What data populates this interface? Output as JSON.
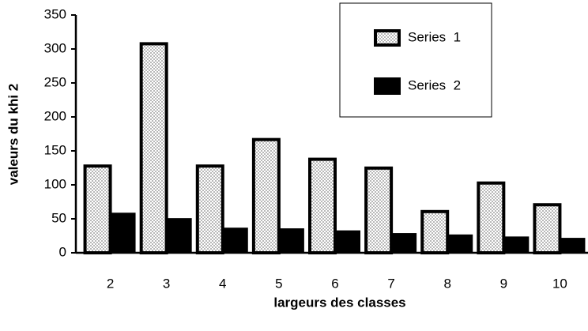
{
  "chart_data": {
    "type": "bar",
    "x_label": "largeurs des classes",
    "y_label": "valeurs du khi 2",
    "categories": [
      "2",
      "3",
      "4",
      "5",
      "6",
      "7",
      "8",
      "9",
      "10"
    ],
    "series": [
      {
        "name": "Series  1",
        "color": "#b8b8b8",
        "values": [
          130,
          310,
          130,
          169,
          140,
          127,
          63,
          105,
          73
        ]
      },
      {
        "name": "Series  2",
        "color": "#000000",
        "values": [
          59,
          51,
          37,
          36,
          33,
          29,
          27,
          24,
          22
        ]
      }
    ],
    "ylim": [
      0,
      350
    ],
    "yticks": [
      0,
      50,
      100,
      150,
      200,
      250,
      300,
      350
    ],
    "legend": "upper right"
  }
}
